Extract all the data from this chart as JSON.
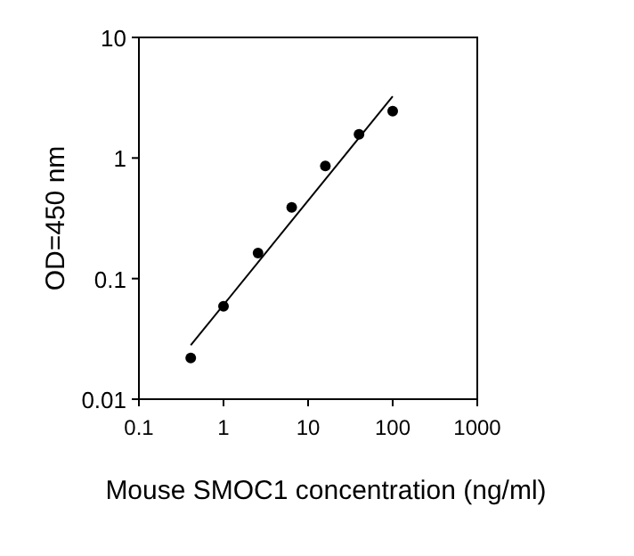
{
  "chart_data": {
    "type": "scatter",
    "xlabel": "Mouse SMOC1 concentration (ng/ml)",
    "ylabel": "OD=450 nm",
    "log": "xy",
    "grid": false,
    "xlim": [
      0.1,
      1000
    ],
    "xticks": [
      0.1,
      1,
      10,
      100,
      1000
    ],
    "ylim": [
      0.01,
      10
    ],
    "yticks": [
      0.01,
      0.1,
      1,
      10
    ],
    "series": [
      {
        "color": "#000000",
        "marker": "circle",
        "x": [
          0.41,
          1,
          2.56,
          6.4,
          16,
          40,
          100
        ],
        "values": [
          0.022,
          0.059,
          0.163,
          0.39,
          0.86,
          1.57,
          2.45
        ]
      },
      {
        "type": "line",
        "color": "#000000",
        "line_style": "solid",
        "marker": "none",
        "x": [
          0.41,
          100
        ],
        "values": [
          0.028,
          3.25
        ]
      }
    ]
  }
}
